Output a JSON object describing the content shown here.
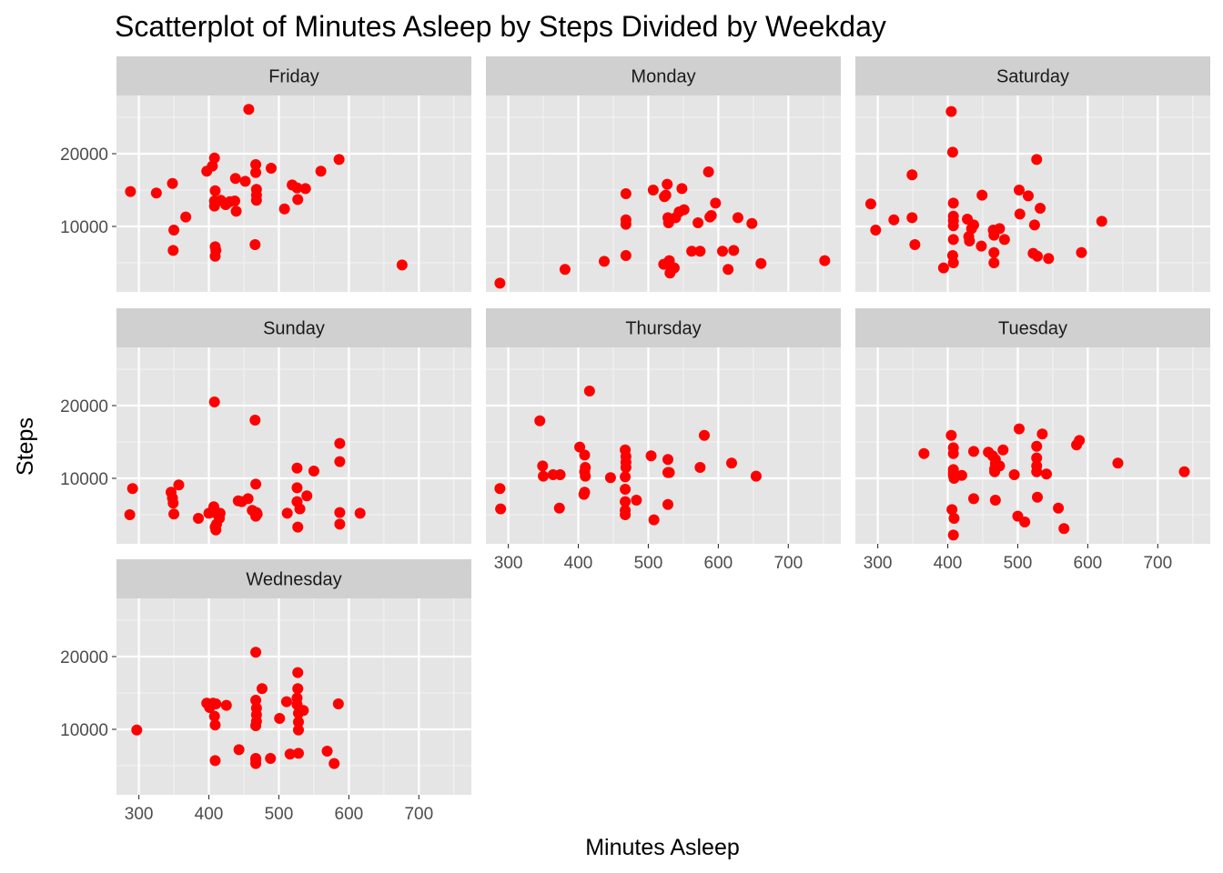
{
  "chart_data": {
    "type": "scatter",
    "title": "Scatterplot of Minutes Asleep by Steps Divided by Weekday",
    "xlabel": "Minutes Asleep",
    "ylabel": "Steps",
    "xlim": [
      268,
      775
    ],
    "ylim": [
      1000,
      28000
    ],
    "x_ticks": [
      300,
      400,
      500,
      600,
      700
    ],
    "y_ticks": [
      10000,
      20000
    ],
    "point_color": "#ff0000",
    "panel_bg": "#e5e5e5",
    "strip_bg": "#d0d0d0",
    "grid": true,
    "panels": [
      {
        "name": "Friday",
        "points": [
          [
            288,
            14800
          ],
          [
            325,
            14600
          ],
          [
            348,
            15900
          ],
          [
            350,
            9500
          ],
          [
            349,
            6700
          ],
          [
            367,
            11300
          ],
          [
            397,
            17600
          ],
          [
            405,
            18300
          ],
          [
            408,
            19400
          ],
          [
            409,
            14900
          ],
          [
            408,
            13500
          ],
          [
            408,
            12800
          ],
          [
            409,
            7200
          ],
          [
            410,
            6700
          ],
          [
            409,
            5900
          ],
          [
            417,
            13600
          ],
          [
            424,
            13000
          ],
          [
            430,
            13400
          ],
          [
            437,
            13500
          ],
          [
            438,
            16600
          ],
          [
            439,
            12100
          ],
          [
            452,
            16200
          ],
          [
            457,
            26100
          ],
          [
            466,
            7500
          ],
          [
            467,
            18500
          ],
          [
            467,
            17400
          ],
          [
            468,
            15100
          ],
          [
            468,
            14300
          ],
          [
            468,
            13600
          ],
          [
            489,
            18000
          ],
          [
            508,
            12400
          ],
          [
            519,
            15700
          ],
          [
            526,
            15300
          ],
          [
            527,
            13700
          ],
          [
            538,
            15200
          ],
          [
            560,
            17600
          ],
          [
            586,
            19200
          ],
          [
            676,
            4700
          ]
        ]
      },
      {
        "name": "Monday",
        "points": [
          [
            288,
            2200
          ],
          [
            381,
            4100
          ],
          [
            437,
            5200
          ],
          [
            468,
            14500
          ],
          [
            468,
            10900
          ],
          [
            468,
            10300
          ],
          [
            468,
            6000
          ],
          [
            507,
            15000
          ],
          [
            522,
            4800
          ],
          [
            523,
            14100
          ],
          [
            525,
            14300
          ],
          [
            527,
            15800
          ],
          [
            528,
            11200
          ],
          [
            529,
            10500
          ],
          [
            530,
            5300
          ],
          [
            531,
            3600
          ],
          [
            532,
            4500
          ],
          [
            537,
            4300
          ],
          [
            539,
            11200
          ],
          [
            544,
            12000
          ],
          [
            548,
            15200
          ],
          [
            551,
            12300
          ],
          [
            571,
            10500
          ],
          [
            574,
            6600
          ],
          [
            586,
            17500
          ],
          [
            588,
            11300
          ],
          [
            590,
            11500
          ],
          [
            596,
            13200
          ],
          [
            562,
            6600
          ],
          [
            606,
            6600
          ],
          [
            614,
            4100
          ],
          [
            622,
            6700
          ],
          [
            628,
            11200
          ],
          [
            648,
            10400
          ],
          [
            661,
            4900
          ],
          [
            752,
            5300
          ]
        ]
      },
      {
        "name": "Saturday",
        "points": [
          [
            290,
            13100
          ],
          [
            297,
            9500
          ],
          [
            323,
            10900
          ],
          [
            349,
            17100
          ],
          [
            349,
            11200
          ],
          [
            353,
            7500
          ],
          [
            394,
            4300
          ],
          [
            405,
            25800
          ],
          [
            407,
            20200
          ],
          [
            408,
            13200
          ],
          [
            408,
            11400
          ],
          [
            408,
            10800
          ],
          [
            408,
            10100
          ],
          [
            408,
            8200
          ],
          [
            407,
            6000
          ],
          [
            408,
            5000
          ],
          [
            428,
            11000
          ],
          [
            430,
            8600
          ],
          [
            431,
            8000
          ],
          [
            434,
            9700
          ],
          [
            437,
            10200
          ],
          [
            448,
            7300
          ],
          [
            449,
            14300
          ],
          [
            465,
            9500
          ],
          [
            466,
            8800
          ],
          [
            466,
            6400
          ],
          [
            466,
            5000
          ],
          [
            474,
            9700
          ],
          [
            481,
            8200
          ],
          [
            502,
            15000
          ],
          [
            503,
            11700
          ],
          [
            515,
            14200
          ],
          [
            522,
            6300
          ],
          [
            524,
            10200
          ],
          [
            527,
            19200
          ],
          [
            528,
            5900
          ],
          [
            532,
            12500
          ],
          [
            544,
            5600
          ],
          [
            591,
            6400
          ],
          [
            620,
            10700
          ]
        ]
      },
      {
        "name": "Sunday",
        "points": [
          [
            287,
            5000
          ],
          [
            291,
            8600
          ],
          [
            346,
            8100
          ],
          [
            348,
            7300
          ],
          [
            349,
            6600
          ],
          [
            350,
            5100
          ],
          [
            357,
            9100
          ],
          [
            385,
            4500
          ],
          [
            400,
            5200
          ],
          [
            407,
            6100
          ],
          [
            408,
            20500
          ],
          [
            408,
            5300
          ],
          [
            409,
            3300
          ],
          [
            410,
            2900
          ],
          [
            411,
            3700
          ],
          [
            414,
            4900
          ],
          [
            415,
            4500
          ],
          [
            416,
            5200
          ],
          [
            442,
            6900
          ],
          [
            447,
            6800
          ],
          [
            456,
            7200
          ],
          [
            462,
            5600
          ],
          [
            466,
            18000
          ],
          [
            467,
            9200
          ],
          [
            467,
            4800
          ],
          [
            468,
            5300
          ],
          [
            469,
            5100
          ],
          [
            512,
            5200
          ],
          [
            526,
            11400
          ],
          [
            526,
            8700
          ],
          [
            526,
            6800
          ],
          [
            527,
            3300
          ],
          [
            530,
            5800
          ],
          [
            540,
            7600
          ],
          [
            550,
            11000
          ],
          [
            587,
            14800
          ],
          [
            587,
            12300
          ],
          [
            587,
            5300
          ],
          [
            587,
            3700
          ],
          [
            616,
            5200
          ]
        ]
      },
      {
        "name": "Thursday",
        "points": [
          [
            288,
            8600
          ],
          [
            289,
            5800
          ],
          [
            345,
            17900
          ],
          [
            349,
            11700
          ],
          [
            350,
            10300
          ],
          [
            364,
            10500
          ],
          [
            374,
            10500
          ],
          [
            373,
            5900
          ],
          [
            402,
            14300
          ],
          [
            409,
            13200
          ],
          [
            410,
            11500
          ],
          [
            409,
            10900
          ],
          [
            410,
            10300
          ],
          [
            409,
            8100
          ],
          [
            408,
            7800
          ],
          [
            416,
            22000
          ],
          [
            446,
            10100
          ],
          [
            467,
            13900
          ],
          [
            468,
            13000
          ],
          [
            468,
            12200
          ],
          [
            468,
            11500
          ],
          [
            467,
            10200
          ],
          [
            467,
            8500
          ],
          [
            467,
            6800
          ],
          [
            467,
            5600
          ],
          [
            467,
            5000
          ],
          [
            483,
            7000
          ],
          [
            504,
            13100
          ],
          [
            508,
            4300
          ],
          [
            528,
            12600
          ],
          [
            528,
            10800
          ],
          [
            530,
            10800
          ],
          [
            528,
            6400
          ],
          [
            574,
            11500
          ],
          [
            580,
            15900
          ],
          [
            619,
            12100
          ],
          [
            654,
            10300
          ]
        ]
      },
      {
        "name": "Tuesday",
        "points": [
          [
            366,
            13400
          ],
          [
            405,
            15900
          ],
          [
            406,
            5700
          ],
          [
            408,
            14200
          ],
          [
            408,
            13400
          ],
          [
            408,
            11200
          ],
          [
            408,
            10700
          ],
          [
            408,
            10400
          ],
          [
            409,
            10000
          ],
          [
            409,
            4500
          ],
          [
            408,
            2200
          ],
          [
            420,
            10400
          ],
          [
            437,
            13700
          ],
          [
            437,
            7200
          ],
          [
            458,
            13600
          ],
          [
            464,
            13100
          ],
          [
            468,
            12600
          ],
          [
            468,
            12000
          ],
          [
            467,
            11300
          ],
          [
            467,
            10900
          ],
          [
            468,
            7000
          ],
          [
            474,
            11700
          ],
          [
            479,
            13900
          ],
          [
            495,
            10500
          ],
          [
            500,
            4800
          ],
          [
            502,
            16800
          ],
          [
            510,
            4000
          ],
          [
            527,
            14400
          ],
          [
            527,
            12800
          ],
          [
            527,
            11700
          ],
          [
            528,
            7400
          ],
          [
            527,
            10900
          ],
          [
            535,
            16100
          ],
          [
            541,
            10600
          ],
          [
            558,
            5900
          ],
          [
            566,
            3100
          ],
          [
            584,
            14600
          ],
          [
            588,
            15200
          ],
          [
            643,
            12100
          ],
          [
            738,
            10900
          ]
        ]
      },
      {
        "name": "Wednesday",
        "points": [
          [
            297,
            9900
          ],
          [
            397,
            13600
          ],
          [
            401,
            13000
          ],
          [
            406,
            13600
          ],
          [
            408,
            11800
          ],
          [
            409,
            10600
          ],
          [
            409,
            5700
          ],
          [
            410,
            13500
          ],
          [
            425,
            13300
          ],
          [
            443,
            7200
          ],
          [
            467,
            20600
          ],
          [
            467,
            14000
          ],
          [
            468,
            12900
          ],
          [
            468,
            12000
          ],
          [
            468,
            11100
          ],
          [
            467,
            10500
          ],
          [
            467,
            6000
          ],
          [
            467,
            5800
          ],
          [
            467,
            5300
          ],
          [
            476,
            15600
          ],
          [
            488,
            6000
          ],
          [
            501,
            11500
          ],
          [
            511,
            13800
          ],
          [
            516,
            6600
          ],
          [
            527,
            17800
          ],
          [
            527,
            15600
          ],
          [
            526,
            14300
          ],
          [
            526,
            13400
          ],
          [
            528,
            12200
          ],
          [
            528,
            11000
          ],
          [
            528,
            9900
          ],
          [
            528,
            6700
          ],
          [
            535,
            12600
          ],
          [
            569,
            7000
          ],
          [
            579,
            5300
          ],
          [
            585,
            13500
          ]
        ]
      }
    ]
  }
}
